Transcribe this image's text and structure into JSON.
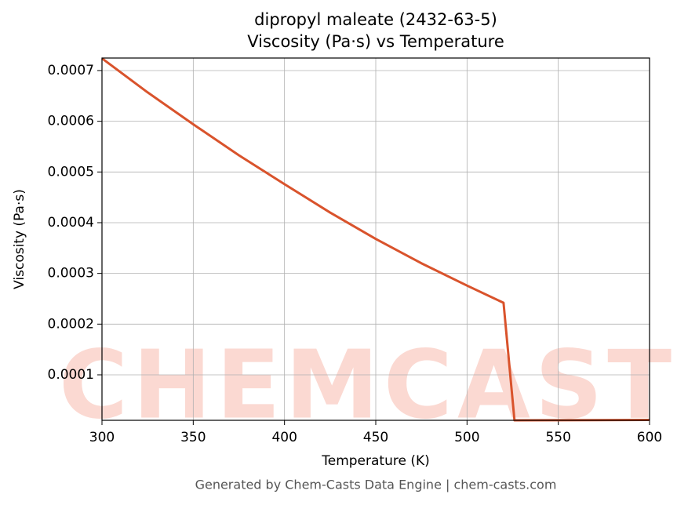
{
  "chart_data": {
    "type": "line",
    "title": "dipropyl maleate (2432-63-5)",
    "subtitle": "Viscosity (Pa·s) vs Temperature",
    "x_label": "Temperature (K)",
    "y_label": "Viscosity (Pa·s)",
    "watermark": "CHEMCASTS",
    "footer": "Generated by Chem-Casts Data Engine | chem-casts.com",
    "x": [
      300,
      325,
      350,
      375,
      400,
      425,
      450,
      475,
      500,
      520,
      526,
      600
    ],
    "series": [
      {
        "name": "Viscosity",
        "color": "#d9532c",
        "values": [
          0.000724,
          0.000657,
          0.000594,
          0.000533,
          0.000476,
          0.00042,
          0.000368,
          0.00032,
          0.000276,
          0.000242,
          1.03e-05,
          1.1e-05
        ]
      }
    ],
    "xlim": [
      300,
      600
    ],
    "xticks": [
      300,
      350,
      400,
      450,
      500,
      550,
      600
    ],
    "ylim": [
      1.03e-05,
      0.0007247
    ],
    "yticks": [
      0.0001,
      0.0002,
      0.0003,
      0.0004,
      0.0005,
      0.0006,
      0.0007
    ],
    "grid": true
  }
}
